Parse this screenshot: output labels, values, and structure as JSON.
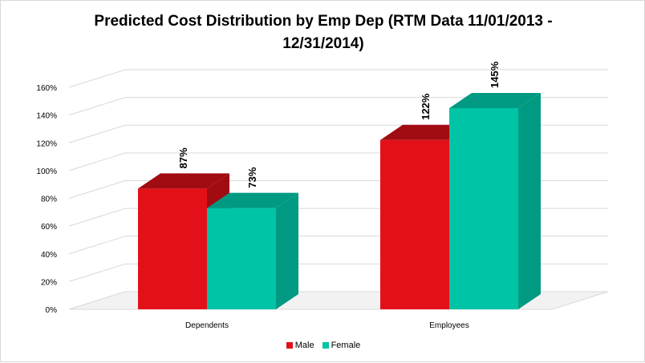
{
  "chart_data": {
    "type": "bar",
    "title": "Predicted Cost Distribution  by Emp Dep (RTM Data 11/01/2013 -\n12/31/2014)",
    "categories": [
      "Dependents",
      "Employees"
    ],
    "series": [
      {
        "name": "Male",
        "values": [
          87,
          122
        ],
        "labels": [
          "87%",
          "122%"
        ],
        "color": "#e41019",
        "top_color": "#a10b12",
        "side_color": "#a10b12"
      },
      {
        "name": "Female",
        "values": [
          73,
          145
        ],
        "labels": [
          "73%",
          "145%"
        ],
        "color": "#00c4a6",
        "top_color": "#009a82",
        "side_color": "#009a82"
      }
    ],
    "ylim": [
      0,
      160
    ],
    "yticks": [
      "0%",
      "20%",
      "40%",
      "60%",
      "80%",
      "100%",
      "120%",
      "140%",
      "160%"
    ],
    "grid": true,
    "legend_position": "bottom",
    "three_d": true
  }
}
